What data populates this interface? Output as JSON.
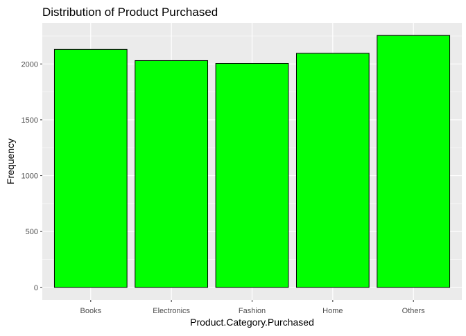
{
  "chart_data": {
    "type": "bar",
    "title": "Distribution of Product Purchased",
    "xlabel": "Product.Category.Purchased",
    "ylabel": "Frequency",
    "categories": [
      "Books",
      "Electronics",
      "Fashion",
      "Home",
      "Others"
    ],
    "values": [
      2130,
      2030,
      2005,
      2095,
      2255
    ],
    "ylim": [
      -112.75,
      2367.75
    ],
    "yticks": [
      0,
      500,
      1000,
      1500,
      2000
    ],
    "ytick_labels": [
      "0",
      "500",
      "1000",
      "1500",
      "2000"
    ],
    "grid": true,
    "legend": "none",
    "colors": {
      "bar_fill": "#00ff00",
      "bar_stroke": "#000000",
      "panel_bg": "#ebebeb",
      "grid_major": "#ffffff",
      "grid_minor": "#f5f5f5",
      "axis_text": "#4d4d4d",
      "title_text": "#000000"
    }
  }
}
